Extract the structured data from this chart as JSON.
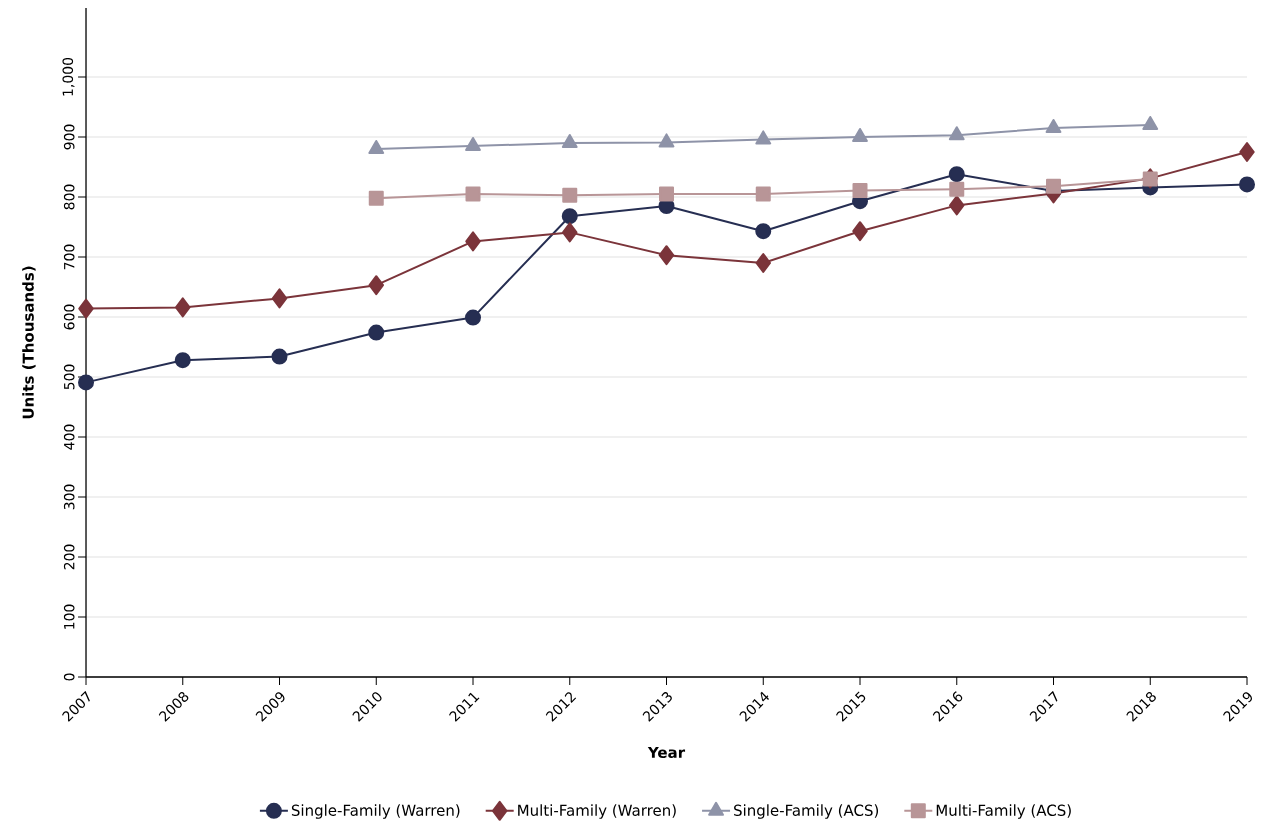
{
  "chart_data": {
    "type": "line",
    "xlabel": "Year",
    "ylabel": "Units (Thousands)",
    "x": [
      2007,
      2008,
      2009,
      2010,
      2011,
      2012,
      2013,
      2014,
      2015,
      2016,
      2017,
      2018,
      2019
    ],
    "xlim": [
      2007,
      2019
    ],
    "xticks": [
      2007,
      2008,
      2009,
      2010,
      2011,
      2012,
      2013,
      2014,
      2015,
      2016,
      2017,
      2018,
      2019
    ],
    "ylim": [
      0,
      1115
    ],
    "yticks": [
      0,
      100,
      200,
      300,
      400,
      500,
      600,
      700,
      800,
      900,
      {
        "value": 1000,
        "label": "1,000"
      }
    ],
    "grid": "y",
    "legend": "bottom",
    "line_style": "solid",
    "series": [
      {
        "name": "Single-Family (Warren)",
        "color": "#262e52",
        "marker": "circle",
        "values": [
          491,
          528,
          534,
          574,
          599,
          768,
          785,
          743,
          793,
          838,
          810,
          816,
          821
        ]
      },
      {
        "name": "Multi-Family (Warren)",
        "color": "#7b343a",
        "marker": "diamond",
        "values": [
          614,
          616,
          631,
          653,
          726,
          741,
          703,
          690,
          743,
          786,
          806,
          831,
          875
        ]
      },
      {
        "name": "Single-Family (ACS)",
        "color": "#8e93a8",
        "marker": "triangle",
        "values": [
          null,
          null,
          null,
          880,
          885,
          890,
          891,
          896,
          900,
          903,
          915,
          920,
          null
        ]
      },
      {
        "name": "Multi-Family (ACS)",
        "color": "#b89597",
        "marker": "square",
        "values": [
          null,
          null,
          null,
          798,
          805,
          803,
          805,
          805,
          811,
          813,
          818,
          830,
          null
        ]
      }
    ]
  }
}
